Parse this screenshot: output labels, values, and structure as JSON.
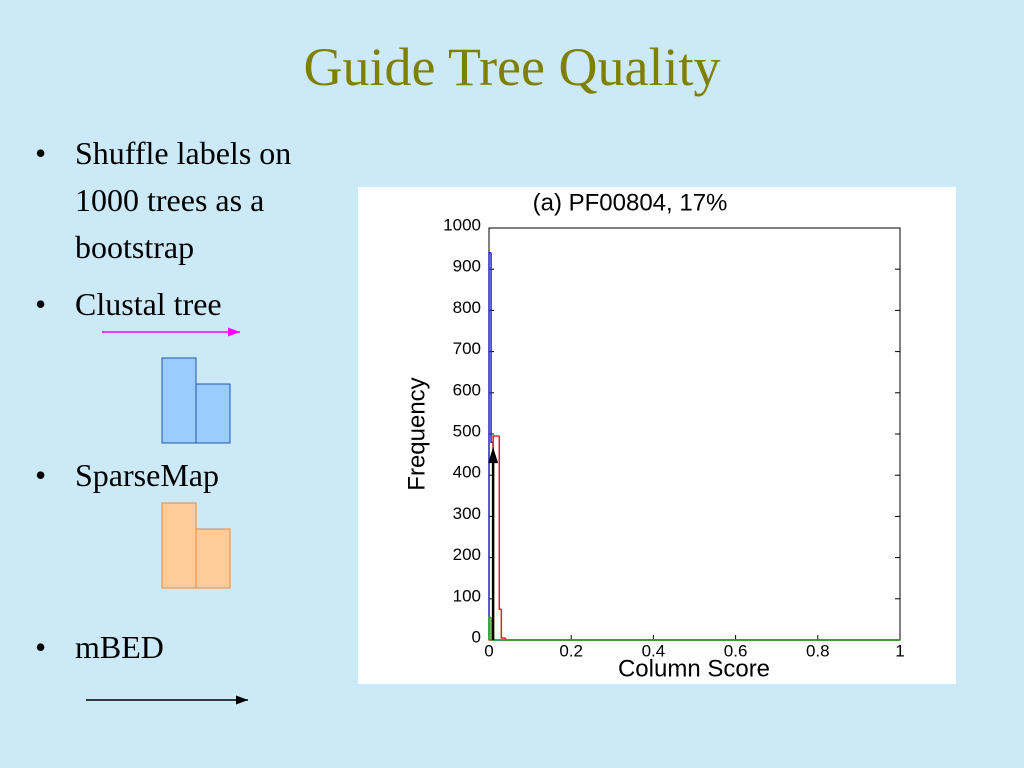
{
  "title": "Guide Tree Quality",
  "bullets": [
    "Shuffle labels on 1000 trees as a bootstrap",
    "Clustal tree",
    "SparseMap",
    "mBED"
  ],
  "chart_data": {
    "type": "histogram",
    "title": "(a)    PF00804, 17%",
    "x_label": "Column Score",
    "y_label": "Frequency",
    "bins": [
      0,
      0.005,
      0.01,
      0.015,
      0.02,
      0.025,
      0.03,
      0.035,
      0.04,
      0.045,
      1
    ],
    "series": [
      {
        "color": "#2222cc",
        "values": [
          940,
          480,
          0,
          0,
          0,
          0,
          0,
          0,
          0,
          0
        ]
      },
      {
        "color": "#dd2222",
        "values": [
          0,
          0,
          495,
          495,
          495,
          75,
          5,
          5,
          0,
          0
        ]
      },
      {
        "color": "#22aa22",
        "values": [
          55,
          0,
          0,
          0,
          0,
          0,
          0,
          0,
          0,
          0
        ]
      }
    ],
    "arrow": {
      "x": 0.01,
      "y": 468,
      "color": "#000000"
    },
    "xlim": [
      0,
      1
    ],
    "ylim": [
      0,
      1000
    ],
    "xticks": [
      0,
      0.2,
      0.4,
      0.6,
      0.8,
      1
    ],
    "yticks": [
      0,
      100,
      200,
      300,
      400,
      500,
      600,
      700,
      800,
      900,
      1000
    ]
  }
}
